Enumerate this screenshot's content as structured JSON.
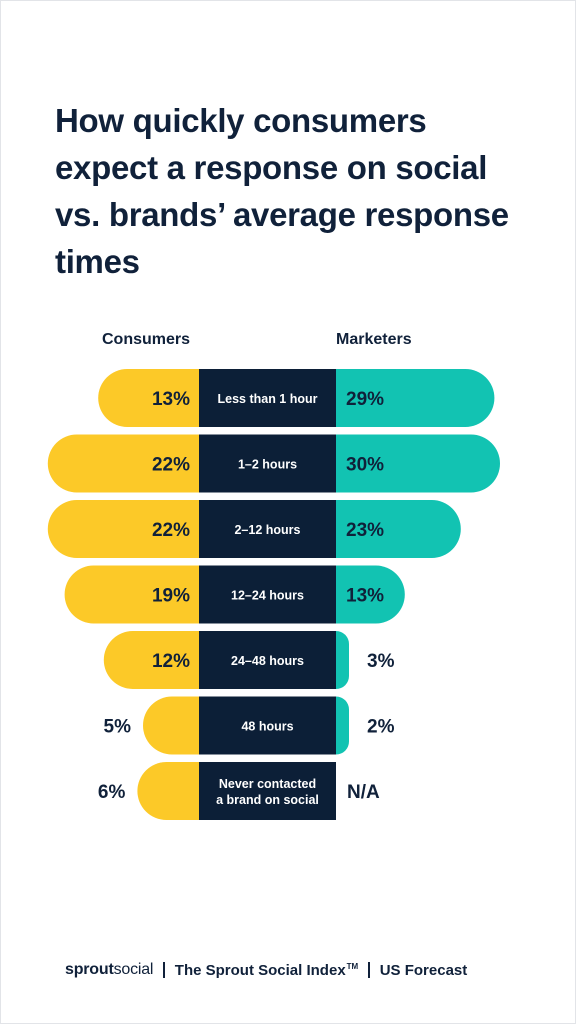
{
  "title": "How quickly consumers expect a response on social vs. brands’ average response times",
  "colors": {
    "consumers": "#fcc928",
    "marketers": "#12c3b2",
    "center": "#0c1f37",
    "text": "#10213a",
    "center_text": "#ffffff"
  },
  "chart_data": {
    "type": "bar",
    "series": [
      {
        "name": "Consumers",
        "values": [
          13,
          22,
          22,
          19,
          12,
          5,
          6
        ],
        "labels": [
          "13%",
          "22%",
          "22%",
          "19%",
          "12%",
          "5%",
          "6%"
        ]
      },
      {
        "name": "Marketers",
        "values": [
          29,
          30,
          23,
          13,
          3,
          2,
          null
        ],
        "labels": [
          "29%",
          "30%",
          "23%",
          "13%",
          "3%",
          "2%",
          "N/A"
        ]
      }
    ],
    "categories": [
      "Less than 1 hour",
      "1–2 hours",
      "2–12 hours",
      "12–24 hours",
      "24–48 hours",
      "48 hours",
      "Never contacted a brand on social"
    ],
    "title": "How quickly consumers expect a response on social vs. brands’ average response times",
    "legend": "top"
  },
  "footer": {
    "logo_bold": "sprout",
    "logo_light": "social",
    "index": "The Sprout Social Index",
    "tm": "TM",
    "forecast": "US Forecast"
  }
}
